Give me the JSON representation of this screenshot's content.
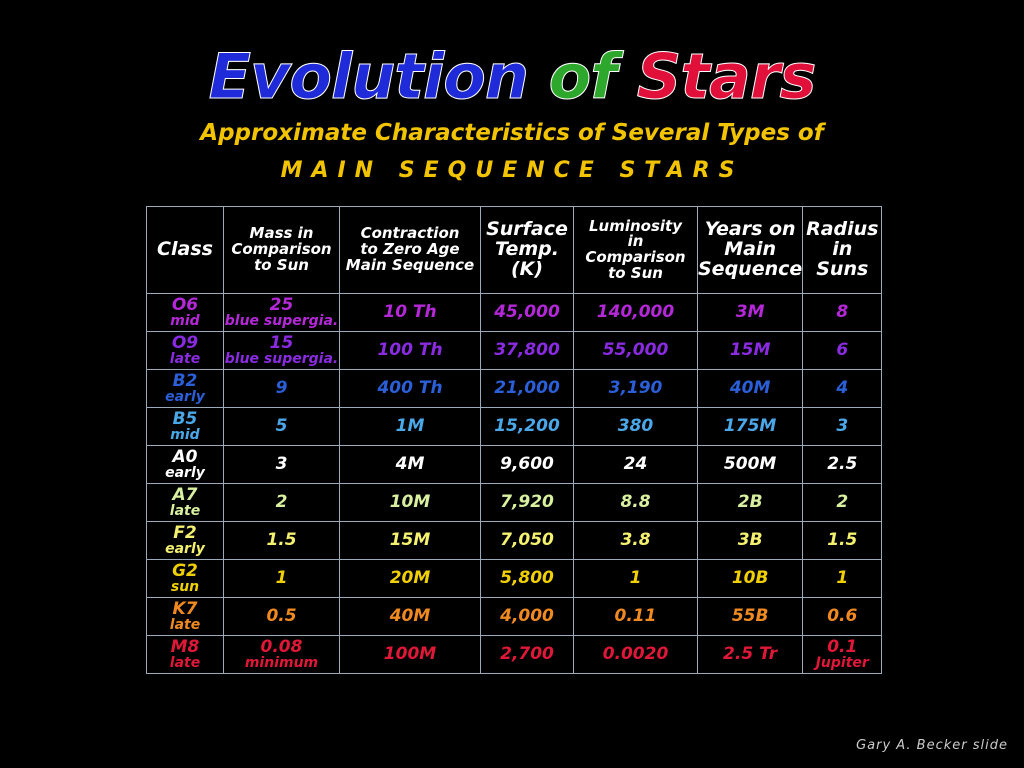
{
  "title": [
    "Evolution",
    "of",
    "Stars"
  ],
  "subtitle": "Approximate Characteristics of Several Types of",
  "subtitle2": "MAIN SEQUENCE STARS",
  "table": {
    "header": [
      [
        "Class"
      ],
      [
        "Mass in",
        "Comparison",
        "to Sun"
      ],
      [
        "Contraction",
        "to Zero Age",
        "Main Sequence"
      ],
      [
        "Surface",
        "Temp.",
        "(K)"
      ],
      [
        "Luminosity",
        "in",
        "Comparison",
        "to Sun"
      ],
      [
        "Years on",
        "Main",
        "Sequence"
      ],
      [
        "Radius",
        "in",
        "Suns"
      ]
    ],
    "rows": [
      [
        [
          "O6",
          "mid"
        ],
        [
          "25",
          "blue supergia."
        ],
        [
          "10 Th"
        ],
        [
          "45,000"
        ],
        [
          "140,000"
        ],
        [
          "3M"
        ],
        [
          "8"
        ]
      ],
      [
        [
          "O9",
          "late"
        ],
        [
          "15",
          "blue supergia."
        ],
        [
          "100 Th"
        ],
        [
          "37,800"
        ],
        [
          "55,000"
        ],
        [
          "15M"
        ],
        [
          "6"
        ]
      ],
      [
        [
          "B2",
          "early"
        ],
        [
          "9"
        ],
        [
          "400 Th"
        ],
        [
          "21,000"
        ],
        [
          "3,190"
        ],
        [
          "40M"
        ],
        [
          "4"
        ]
      ],
      [
        [
          "B5",
          "mid"
        ],
        [
          "5"
        ],
        [
          "1M"
        ],
        [
          "15,200"
        ],
        [
          "380"
        ],
        [
          "175M"
        ],
        [
          "3"
        ]
      ],
      [
        [
          "A0",
          "early"
        ],
        [
          "3"
        ],
        [
          "4M"
        ],
        [
          "9,600"
        ],
        [
          "24"
        ],
        [
          "500M"
        ],
        [
          "2.5"
        ]
      ],
      [
        [
          "A7",
          "late"
        ],
        [
          "2"
        ],
        [
          "10M"
        ],
        [
          "7,920"
        ],
        [
          "8.8"
        ],
        [
          "2B"
        ],
        [
          "2"
        ]
      ],
      [
        [
          "F2",
          "early"
        ],
        [
          "1.5"
        ],
        [
          "15M"
        ],
        [
          "7,050"
        ],
        [
          "3.8"
        ],
        [
          "3B"
        ],
        [
          "1.5"
        ]
      ],
      [
        [
          "G2",
          "sun"
        ],
        [
          "1"
        ],
        [
          "20M"
        ],
        [
          "5,800"
        ],
        [
          "1"
        ],
        [
          "10B"
        ],
        [
          "1"
        ]
      ],
      [
        [
          "K7",
          "late"
        ],
        [
          "0.5"
        ],
        [
          "40M"
        ],
        [
          "4,000"
        ],
        [
          "0.11"
        ],
        [
          "55B"
        ],
        [
          "0.6"
        ]
      ],
      [
        [
          "M8",
          "late"
        ],
        [
          "0.08",
          "minimum"
        ],
        [
          "100M"
        ],
        [
          "2,700"
        ],
        [
          "0.0020"
        ],
        [
          "2.5 Tr"
        ],
        [
          "0.1",
          "Jupiter"
        ]
      ]
    ]
  },
  "credit": "Gary A. Becker slide"
}
